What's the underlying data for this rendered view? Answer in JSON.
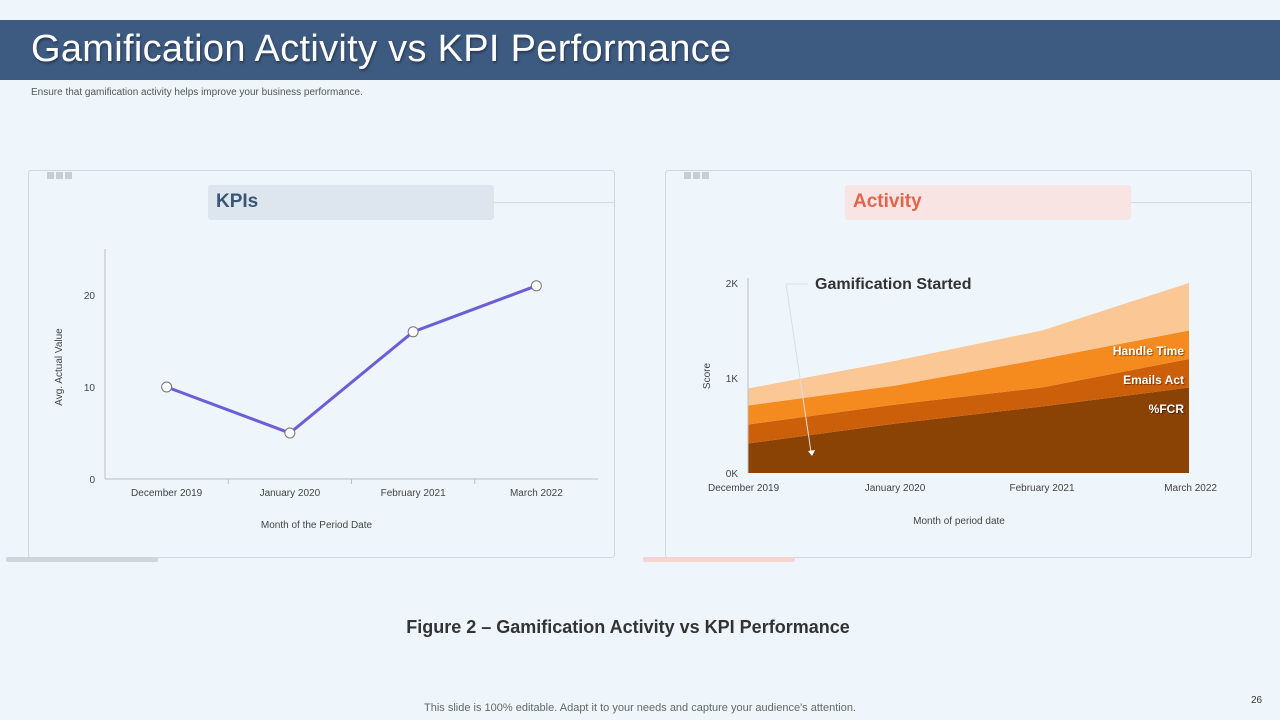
{
  "header": {
    "title": "Gamification Activity vs KPI Performance",
    "subtitle": "Ensure that gamification activity helps improve your business performance."
  },
  "panels": {
    "kpi_label": "KPIs",
    "activity_label": "Activity"
  },
  "caption": "Figure 2 – Gamification Activity vs KPI Performance",
  "footer": "This slide is 100% editable. Adapt it to your needs and capture your audience's attention.",
  "page_number": "26",
  "colors": {
    "title_bar": "#3d5a80",
    "kpi_line": "#6a5fd6",
    "fcr": "#8a4205",
    "emails_act": "#cc5f0a",
    "handle_time": "#f58a1e",
    "top_layer": "#fbc795"
  },
  "chart_data": [
    {
      "type": "line",
      "title": "KPIs",
      "categories": [
        "December 2019",
        "January 2020",
        "February 2021",
        "March 2022"
      ],
      "series": [
        {
          "name": "Avg. Actual Value",
          "values": [
            10,
            5,
            16,
            21
          ]
        }
      ],
      "xlabel": "Month of the Period Date",
      "ylabel": "Avg. Actual Value",
      "ylim": [
        0,
        25
      ],
      "yticks": [
        "0",
        "10",
        "20"
      ],
      "ytick_values": [
        0,
        10,
        20
      ],
      "grid": false
    },
    {
      "type": "area",
      "title": "Activity",
      "stacked": true,
      "categories": [
        "December 2019",
        "January 2020",
        "February 2021",
        "March 2022"
      ],
      "series": [
        {
          "name": "%FCR",
          "values": [
            310,
            520,
            700,
            900
          ]
        },
        {
          "name": "Emails Act",
          "values": [
            200,
            200,
            200,
            300
          ]
        },
        {
          "name": "Handle Time",
          "values": [
            200,
            200,
            300,
            300
          ]
        },
        {
          "name": "",
          "values": [
            180,
            260,
            300,
            500
          ]
        }
      ],
      "xlabel": "Month of period date",
      "ylabel": "Score",
      "ylim": [
        0,
        2000
      ],
      "yticks": [
        "0K",
        "1K",
        "2K"
      ],
      "ytick_values": [
        0,
        1000,
        2000
      ],
      "annotation": "Gamification Started",
      "grid": false
    }
  ]
}
